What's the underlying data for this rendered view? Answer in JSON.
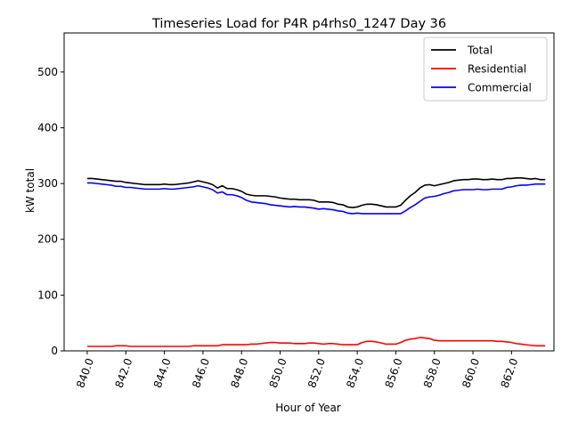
{
  "chart_data": {
    "type": "line",
    "title": "Timeseries Load for P4R p4rhs0_1247  Day 36",
    "xlabel": "Hour of Year",
    "ylabel": "kW total",
    "xlim": [
      838.8,
      864.2
    ],
    "ylim": [
      0,
      570
    ],
    "x_ticks": [
      840,
      842,
      844,
      846,
      848,
      850,
      852,
      854,
      856,
      858,
      860,
      862
    ],
    "x_tick_labels": [
      "840.0",
      "842.0",
      "844.0",
      "846.0",
      "848.0",
      "850.0",
      "852.0",
      "854.0",
      "856.0",
      "858.0",
      "860.0",
      "862.0"
    ],
    "y_ticks": [
      0,
      100,
      200,
      300,
      400,
      500
    ],
    "y_tick_labels": [
      "0",
      "100",
      "200",
      "300",
      "400",
      "500"
    ],
    "grid": false,
    "legend_position": "top-right",
    "x": [
      840.0,
      840.25,
      840.5,
      840.75,
      841.0,
      841.25,
      841.5,
      841.75,
      842.0,
      842.25,
      842.5,
      842.75,
      843.0,
      843.25,
      843.5,
      843.75,
      844.0,
      844.25,
      844.5,
      844.75,
      845.0,
      845.25,
      845.5,
      845.75,
      846.0,
      846.25,
      846.5,
      846.75,
      847.0,
      847.25,
      847.5,
      847.75,
      848.0,
      848.25,
      848.5,
      848.75,
      849.0,
      849.25,
      849.5,
      849.75,
      850.0,
      850.25,
      850.5,
      850.75,
      851.0,
      851.25,
      851.5,
      851.75,
      852.0,
      852.25,
      852.5,
      852.75,
      853.0,
      853.25,
      853.5,
      853.75,
      854.0,
      854.25,
      854.5,
      854.75,
      855.0,
      855.25,
      855.5,
      855.75,
      856.0,
      856.25,
      856.5,
      856.75,
      857.0,
      857.25,
      857.5,
      857.75,
      858.0,
      858.25,
      858.5,
      858.75,
      859.0,
      859.25,
      859.5,
      859.75,
      860.0,
      860.25,
      860.5,
      860.75,
      861.0,
      861.25,
      861.5,
      861.75,
      862.0,
      862.25,
      862.5,
      862.75,
      863.0,
      863.25,
      863.5,
      863.75
    ],
    "series": [
      {
        "name": "Total",
        "color": "#000000",
        "values": [
          309,
          309,
          308,
          307,
          306,
          305,
          304,
          304,
          302,
          301,
          300,
          299,
          298,
          298,
          298,
          298,
          299,
          298,
          298,
          299,
          300,
          301,
          303,
          305,
          303,
          301,
          298,
          292,
          296,
          291,
          291,
          289,
          286,
          281,
          279,
          278,
          278,
          278,
          277,
          276,
          274,
          273,
          272,
          272,
          271,
          271,
          271,
          270,
          267,
          267,
          267,
          266,
          263,
          262,
          258,
          257,
          258,
          261,
          263,
          263,
          262,
          260,
          258,
          258,
          258,
          261,
          270,
          278,
          284,
          292,
          297,
          298,
          296,
          298,
          300,
          302,
          305,
          306,
          307,
          307,
          308,
          308,
          307,
          307,
          308,
          307,
          307,
          309,
          309,
          310,
          310,
          309,
          308,
          309,
          307,
          307
        ]
      },
      {
        "name": "Residential",
        "color": "#ff0000",
        "values": [
          8,
          8,
          8,
          8,
          8,
          8,
          9,
          9,
          9,
          8,
          8,
          8,
          8,
          8,
          8,
          8,
          8,
          8,
          8,
          8,
          8,
          8,
          9,
          9,
          9,
          9,
          9,
          9,
          11,
          11,
          11,
          11,
          11,
          11,
          12,
          12,
          13,
          14,
          15,
          15,
          14,
          14,
          14,
          13,
          13,
          13,
          14,
          14,
          13,
          12,
          13,
          13,
          12,
          11,
          11,
          11,
          11,
          15,
          17,
          17,
          16,
          14,
          12,
          12,
          12,
          15,
          19,
          21,
          22,
          24,
          23,
          22,
          19,
          18,
          18,
          18,
          18,
          18,
          18,
          18,
          18,
          18,
          18,
          18,
          18,
          17,
          17,
          16,
          15,
          13,
          12,
          11,
          10,
          9,
          9,
          9
        ]
      },
      {
        "name": "Commercial",
        "color": "#0000ff",
        "values": [
          301,
          301,
          300,
          299,
          298,
          297,
          295,
          295,
          293,
          293,
          292,
          291,
          290,
          290,
          290,
          290,
          291,
          290,
          290,
          291,
          292,
          293,
          294,
          296,
          294,
          292,
          289,
          283,
          285,
          280,
          280,
          278,
          275,
          270,
          267,
          266,
          265,
          264,
          262,
          261,
          260,
          259,
          258,
          259,
          258,
          258,
          257,
          256,
          254,
          255,
          254,
          253,
          251,
          250,
          247,
          246,
          247,
          246,
          246,
          246,
          246,
          246,
          246,
          246,
          246,
          246,
          251,
          257,
          262,
          268,
          274,
          276,
          277,
          279,
          282,
          284,
          287,
          288,
          289,
          289,
          289,
          290,
          289,
          289,
          290,
          290,
          290,
          293,
          294,
          296,
          297,
          297,
          298,
          299,
          299,
          299
        ]
      }
    ]
  }
}
